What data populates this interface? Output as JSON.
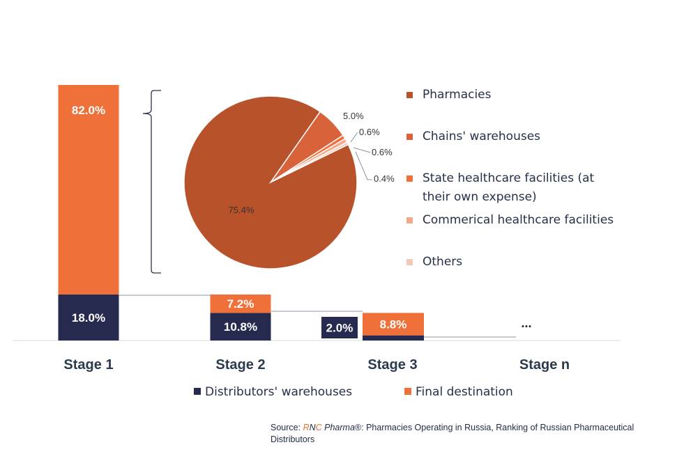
{
  "colors": {
    "distributors": "#262a4f",
    "final": "#f0703a",
    "pie": [
      "#b8522a",
      "#d8623a",
      "#f0703a",
      "#f2a98a",
      "#f6c9b6"
    ],
    "axis": "#d9d9d9",
    "connector": "#8a93a6"
  },
  "chart_data": {
    "type": "bar",
    "stacked": true,
    "categories": [
      "Stage 1",
      "Stage 2",
      "Stage 3",
      "Stage n"
    ],
    "series": [
      {
        "name": "Distributors' warehouses",
        "values": [
          18.0,
          10.8,
          2.0,
          null
        ],
        "labels": [
          "18.0%",
          "10.8%",
          "2.0%",
          ""
        ]
      },
      {
        "name": "Final destination",
        "values": [
          82.0,
          7.2,
          8.8,
          null
        ],
        "labels": [
          "82.0%",
          "7.2%",
          "8.8%",
          ""
        ]
      }
    ],
    "stage_n_text": "...",
    "pie": {
      "type": "pie",
      "slices": [
        {
          "name": "Pharmacies",
          "value": 75.4,
          "label": "75.4%"
        },
        {
          "name": "Chains' warehouses",
          "value": 5.0,
          "label": "5.0%"
        },
        {
          "name": "State healthcare facilities (at their own expense)",
          "value": 0.6,
          "label": "0.6%"
        },
        {
          "name": "Commerical healthcare facilities",
          "value": 0.6,
          "label": "0.6%"
        },
        {
          "name": "Others",
          "value": 0.4,
          "label": "0.4%"
        }
      ],
      "legend": [
        [
          "Pharmacies"
        ],
        [
          "Chains' warehouses"
        ],
        [
          "State healthcare facilities (at",
          "their own expense)"
        ],
        [
          "Commerical healthcare facilities"
        ],
        [
          "Others"
        ]
      ]
    }
  },
  "source": {
    "prefix": "Source: ",
    "brand_r": "R",
    "brand_n": "N",
    "brand_c": "C",
    "brand_rest": " Pharma",
    "trademark": "®",
    "text": ": Pharmacies Operating in Russia, Ranking of Russian Pharmaceutical Distributors"
  }
}
